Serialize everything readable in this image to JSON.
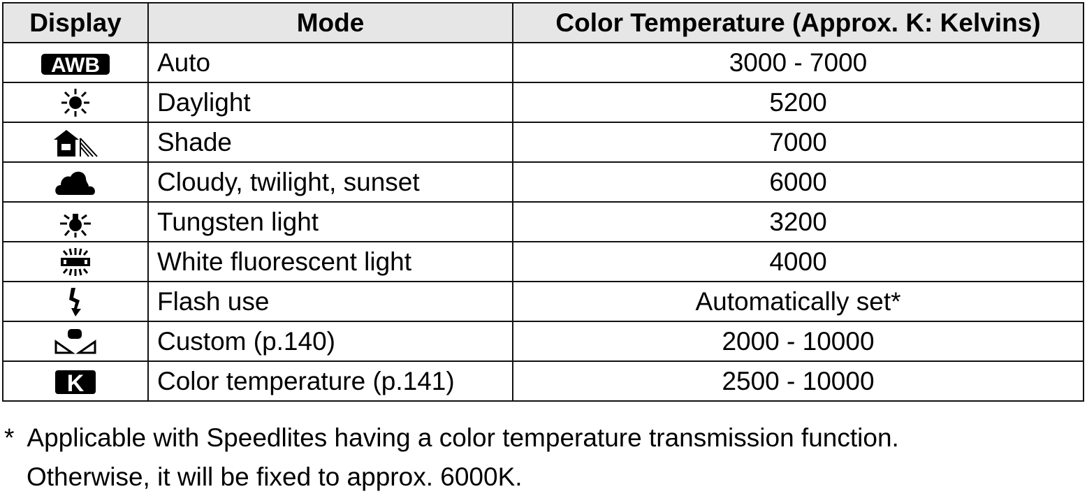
{
  "headers": {
    "display": "Display",
    "mode": "Mode",
    "temp": "Color Temperature (Approx. K: Kelvins)"
  },
  "rows": [
    {
      "icon": "awb-icon",
      "icon_text": "AWB",
      "mode": "Auto",
      "temp": "3000 - 7000"
    },
    {
      "icon": "daylight-sun-icon",
      "mode": "Daylight",
      "temp": "5200"
    },
    {
      "icon": "shade-house-icon",
      "mode": "Shade",
      "temp": "7000"
    },
    {
      "icon": "cloudy-icon",
      "mode": "Cloudy, twilight, sunset",
      "temp": "6000"
    },
    {
      "icon": "tungsten-bulb-icon",
      "mode": "Tungsten light",
      "temp": "3200"
    },
    {
      "icon": "fluorescent-icon",
      "mode": "White fluorescent light",
      "temp": "4000"
    },
    {
      "icon": "flash-icon",
      "mode": "Flash use",
      "temp": "Automatically set*"
    },
    {
      "icon": "custom-wb-icon",
      "mode": "Custom (p.140)",
      "temp": "2000 - 10000"
    },
    {
      "icon": "kelvin-icon",
      "icon_text": "K",
      "mode": "Color temperature (p.141)",
      "temp": "2500 - 10000"
    }
  ],
  "footnote": {
    "marker": "*",
    "line1": "Applicable with Speedlites having a color temperature transmission function.",
    "line2": "Otherwise, it will be fixed to approx. 6000K."
  }
}
